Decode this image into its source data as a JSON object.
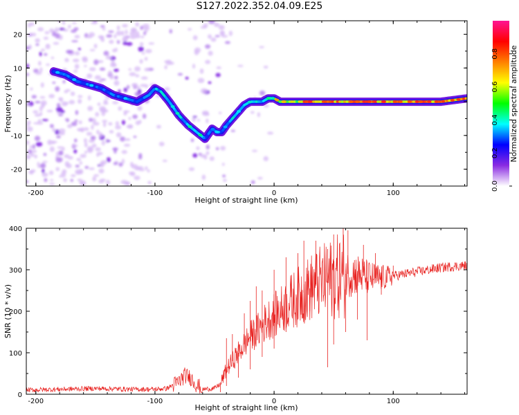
{
  "title": "S127.2022.352.04.09.E25",
  "chart_data": [
    {
      "type": "heatmap",
      "xlabel": "Height of straight line (km)",
      "ylabel": "Frequency (Hz)",
      "xlim": [
        -208,
        162
      ],
      "ylim": [
        -25,
        24
      ],
      "xticks": [
        -200,
        -100,
        0,
        100
      ],
      "yticks": [
        -20,
        -10,
        0,
        10,
        20
      ],
      "ridge": {
        "x": [
          -185,
          -175,
          -165,
          -155,
          -145,
          -135,
          -125,
          -115,
          -105,
          -100,
          -95,
          -88,
          -80,
          -72,
          -65,
          -58,
          -52,
          -48,
          -44,
          -40,
          -35,
          -30,
          -25,
          -20,
          -15,
          -10,
          -5,
          0,
          5,
          10,
          20,
          40,
          60,
          80,
          100,
          120,
          140,
          162
        ],
        "y": [
          9,
          8,
          6,
          5,
          4,
          2,
          1,
          0,
          2,
          4,
          3,
          0,
          -4,
          -7,
          -9,
          -11,
          -8,
          -9,
          -9,
          -7,
          -5,
          -3,
          -1,
          0,
          0,
          0,
          1,
          1,
          0,
          0,
          0,
          0,
          0,
          0,
          0,
          0,
          0,
          1
        ]
      },
      "colorbar": {
        "label": "Normalized spectral amplitude",
        "range": [
          0,
          1
        ],
        "ticks": [
          "0.0",
          "0.2",
          "0.4",
          "0.6",
          "0.8"
        ],
        "stops": [
          "#ffffff",
          "#8a2be2",
          "#0000ff",
          "#00ffff",
          "#00ff00",
          "#ffff00",
          "#ff8000",
          "#ff0000",
          "#ff1493"
        ]
      },
      "grid": false
    },
    {
      "type": "line",
      "xlabel": "Height of straight line (km)",
      "ylabel": "SNR (10 * v/v)",
      "xlim": [
        -208,
        162
      ],
      "ylim": [
        0,
        400
      ],
      "xticks": [
        -200,
        -100,
        0,
        100
      ],
      "yticks": [
        0,
        100,
        200,
        300,
        400
      ],
      "series": [
        {
          "color": "#e8201e",
          "envelope": {
            "x": [
              -208,
              -180,
              -150,
              -120,
              -100,
              -90,
              -80,
              -75,
              -70,
              -65,
              -60,
              -50,
              -45,
              -40,
              -35,
              -30,
              -25,
              -20,
              -15,
              -10,
              -5,
              0,
              5,
              10,
              15,
              20,
              25,
              30,
              35,
              40,
              45,
              50,
              55,
              60,
              65,
              70,
              75,
              80,
              90,
              100,
              110,
              120,
              130,
              140,
              150,
              162
            ],
            "y": [
              10,
              12,
              14,
              12,
              12,
              14,
              30,
              45,
              40,
              22,
              12,
              14,
              25,
              60,
              80,
              100,
              120,
              140,
              150,
              165,
              180,
              190,
              200,
              215,
              225,
              235,
              245,
              255,
              265,
              270,
              275,
              280,
              285,
              290,
              290,
              290,
              285,
              280,
              280,
              285,
              290,
              295,
              300,
              305,
              308,
              310
            ]
          },
          "peaks": [
            [
              -40,
              135
            ],
            [
              -35,
              145
            ],
            [
              -25,
              195
            ],
            [
              -20,
              225
            ],
            [
              -15,
              260
            ],
            [
              -10,
              250
            ],
            [
              0,
              300
            ],
            [
              10,
              330
            ],
            [
              20,
              340
            ],
            [
              25,
              370
            ],
            [
              28,
              290
            ],
            [
              35,
              370
            ],
            [
              45,
              350
            ],
            [
              50,
              385
            ],
            [
              58,
              400
            ],
            [
              62,
              395
            ],
            [
              75,
              360
            ],
            [
              85,
              340
            ],
            [
              100,
              310
            ]
          ],
          "troughs": [
            [
              -45,
              5
            ],
            [
              -40,
              20
            ],
            [
              -30,
              40
            ],
            [
              -20,
              60
            ],
            [
              -10,
              90
            ],
            [
              0,
              110
            ],
            [
              10,
              150
            ],
            [
              20,
              180
            ],
            [
              30,
              200
            ],
            [
              45,
              65
            ],
            [
              50,
              120
            ],
            [
              60,
              150
            ],
            [
              70,
              180
            ],
            [
              78,
              130
            ],
            [
              90,
              240
            ]
          ]
        }
      ],
      "grid": false
    }
  ]
}
